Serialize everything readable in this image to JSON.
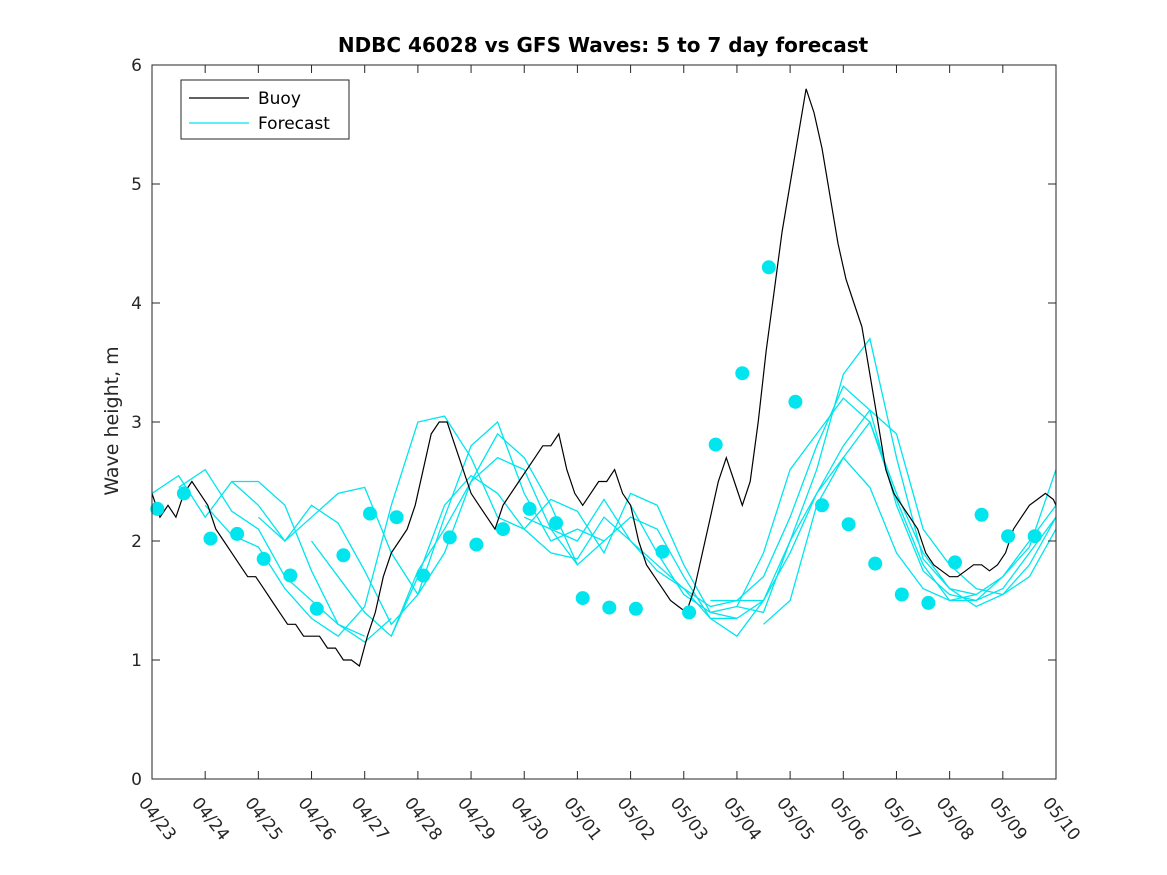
{
  "chart_data": {
    "type": "line",
    "title": "NDBC 46028 vs GFS Waves: 5 to 7 day forecast",
    "xlabel": "",
    "ylabel": "Wave height, m",
    "xlim": [
      "04/23",
      "05/10"
    ],
    "ylim": [
      0,
      6
    ],
    "grid": false,
    "legend_position": "top-left",
    "x_ticks": [
      "04/23",
      "04/24",
      "04/25",
      "04/26",
      "04/27",
      "04/28",
      "04/29",
      "04/30",
      "05/01",
      "05/02",
      "05/03",
      "05/04",
      "05/05",
      "05/06",
      "05/07",
      "05/08",
      "05/09",
      "05/10"
    ],
    "y_ticks": [
      0,
      1,
      2,
      3,
      4,
      5,
      6
    ],
    "colors": {
      "buoy": "#000000",
      "forecast": "#00e5ee"
    },
    "series": [
      {
        "name": "Buoy",
        "style": "line",
        "x_days": [
          0,
          0.15,
          0.3,
          0.45,
          0.6,
          0.75,
          0.9,
          1.05,
          1.2,
          1.35,
          1.5,
          1.65,
          1.8,
          1.95,
          2.1,
          2.25,
          2.4,
          2.55,
          2.7,
          2.85,
          3.0,
          3.15,
          3.3,
          3.45,
          3.6,
          3.75,
          3.9,
          4.05,
          4.2,
          4.35,
          4.5,
          4.65,
          4.8,
          4.95,
          5.1,
          5.25,
          5.4,
          5.55,
          5.7,
          5.85,
          6.0,
          6.15,
          6.3,
          6.45,
          6.6,
          6.75,
          6.9,
          7.05,
          7.2,
          7.35,
          7.5,
          7.65,
          7.8,
          7.95,
          8.1,
          8.25,
          8.4,
          8.55,
          8.7,
          8.85,
          9.0,
          9.15,
          9.3,
          9.45,
          9.6,
          9.75,
          9.9,
          10.05,
          10.2,
          10.35,
          10.5,
          10.65,
          10.8,
          10.95,
          11.1,
          11.25,
          11.4,
          11.55,
          11.7,
          11.85,
          12.0,
          12.15,
          12.3,
          12.45,
          12.6,
          12.75,
          12.9,
          13.05,
          13.2,
          13.35,
          13.5,
          13.65,
          13.8,
          13.95,
          14.1,
          14.25,
          14.4,
          14.55,
          14.7,
          14.85,
          15.0,
          15.15,
          15.3,
          15.45,
          15.6,
          15.75,
          15.9,
          16.05,
          16.2,
          16.35,
          16.5,
          16.65,
          16.8,
          16.95,
          17.0
        ],
        "values": [
          2.4,
          2.2,
          2.3,
          2.2,
          2.4,
          2.5,
          2.4,
          2.3,
          2.1,
          2.0,
          1.9,
          1.8,
          1.7,
          1.7,
          1.6,
          1.5,
          1.4,
          1.3,
          1.3,
          1.2,
          1.2,
          1.2,
          1.1,
          1.1,
          1.0,
          1.0,
          0.95,
          1.2,
          1.4,
          1.7,
          1.9,
          2.0,
          2.1,
          2.3,
          2.6,
          2.9,
          3.0,
          3.0,
          2.8,
          2.6,
          2.4,
          2.3,
          2.2,
          2.1,
          2.3,
          2.4,
          2.5,
          2.6,
          2.7,
          2.8,
          2.8,
          2.9,
          2.6,
          2.4,
          2.3,
          2.4,
          2.5,
          2.5,
          2.6,
          2.4,
          2.3,
          2.0,
          1.8,
          1.7,
          1.6,
          1.5,
          1.45,
          1.4,
          1.6,
          1.9,
          2.2,
          2.5,
          2.7,
          2.5,
          2.3,
          2.5,
          3.0,
          3.6,
          4.1,
          4.6,
          5.0,
          5.4,
          5.8,
          5.6,
          5.3,
          4.9,
          4.5,
          4.2,
          4.0,
          3.8,
          3.4,
          3.0,
          2.6,
          2.4,
          2.3,
          2.2,
          2.1,
          1.9,
          1.8,
          1.75,
          1.7,
          1.7,
          1.75,
          1.8,
          1.8,
          1.75,
          1.8,
          1.9,
          2.1,
          2.2,
          2.3,
          2.35,
          2.4,
          2.35,
          2.3
        ]
      },
      {
        "name": "Forecast",
        "style": "lines",
        "runs": [
          {
            "x_days": [
              0,
              0.5,
              1.0,
              1.5,
              2.0,
              2.5,
              3.0,
              3.5,
              4.0,
              4.5
            ],
            "values": [
              2.4,
              2.55,
              2.2,
              2.5,
              2.5,
              2.3,
              1.75,
              1.3,
              1.15,
              1.35
            ]
          },
          {
            "x_days": [
              0.5,
              1.0,
              1.5,
              2.0,
              2.5,
              3.0,
              3.5,
              4.0
            ],
            "values": [
              2.45,
              2.6,
              2.25,
              2.1,
              1.7,
              1.5,
              1.3,
              1.2
            ]
          },
          {
            "x_days": [
              1.0,
              1.5,
              2.0,
              2.5,
              3.0,
              3.5,
              4.0,
              4.5,
              5.0,
              5.5,
              6.0
            ],
            "values": [
              2.3,
              2.05,
              1.95,
              1.6,
              1.35,
              1.2,
              1.45,
              2.3,
              3.0,
              3.05,
              2.7
            ]
          },
          {
            "x_days": [
              1.5,
              2.0,
              2.5,
              3.0,
              3.5,
              4.0,
              4.5,
              5.0,
              5.5,
              6.0,
              6.5,
              7.0,
              7.5,
              8.0
            ],
            "values": [
              2.5,
              2.3,
              2.0,
              2.2,
              2.4,
              2.45,
              1.9,
              1.55,
              1.9,
              2.5,
              2.7,
              2.6,
              2.1,
              1.8
            ]
          },
          {
            "x_days": [
              2.0,
              2.5,
              3.0,
              3.5,
              4.0,
              4.5,
              5.0,
              5.5,
              6.0,
              6.5,
              7.0,
              7.5,
              8.0,
              8.5
            ],
            "values": [
              2.2,
              2.0,
              2.3,
              2.15,
              1.75,
              1.3,
              1.55,
              2.2,
              2.8,
              3.0,
              2.4,
              2.0,
              2.1,
              2.0
            ]
          },
          {
            "x_days": [
              3.0,
              3.5,
              4.0,
              4.5,
              5.0,
              5.5,
              6.0,
              6.5,
              7.0,
              7.5,
              8.0,
              8.5,
              9.0,
              9.5,
              10.0,
              10.5,
              11.0
            ],
            "values": [
              2.0,
              1.7,
              1.4,
              1.2,
              1.7,
              2.3,
              2.55,
              2.4,
              2.1,
              2.35,
              2.25,
              1.9,
              2.4,
              2.3,
              1.8,
              1.4,
              1.35
            ]
          },
          {
            "x_days": [
              4.5,
              5.0,
              5.5,
              6.0,
              6.5,
              7.0,
              7.5,
              8.0,
              8.5,
              9.0,
              9.5,
              10.0,
              10.5,
              11.0,
              11.5
            ],
            "values": [
              1.2,
              1.75,
              2.1,
              2.5,
              2.9,
              2.7,
              2.3,
              1.8,
              2.0,
              2.2,
              2.1,
              1.7,
              1.35,
              1.2,
              1.5
            ]
          },
          {
            "x_days": [
              6.0,
              6.5,
              7.0,
              7.5,
              8.0,
              8.5,
              9.0,
              9.5,
              10.0,
              10.5,
              11.0,
              11.5,
              12.0,
              12.5,
              13.0,
              13.5,
              14.0,
              14.5,
              15.0,
              15.5
            ],
            "values": [
              2.7,
              2.2,
              2.1,
              1.9,
              1.85,
              2.2,
              2.0,
              1.8,
              1.6,
              1.35,
              1.35,
              1.5,
              1.9,
              2.4,
              2.7,
              2.45,
              1.9,
              1.6,
              1.5,
              1.55
            ]
          },
          {
            "x_days": [
              7.0,
              7.5,
              8.0,
              8.5,
              9.0,
              9.5,
              10.0,
              10.5,
              11.0,
              11.5,
              12.0,
              12.5,
              13.0,
              13.5,
              14.0,
              14.5,
              15.0,
              15.5,
              16.0,
              16.5,
              17.0
            ],
            "values": [
              2.2,
              2.1,
              2.0,
              2.35,
              2.0,
              1.75,
              1.6,
              1.45,
              1.5,
              1.7,
              2.2,
              2.8,
              3.3,
              3.1,
              2.3,
              1.75,
              1.55,
              1.5,
              1.6,
              1.9,
              2.2
            ]
          },
          {
            "x_days": [
              9.0,
              9.5,
              10.0,
              10.5,
              11.0,
              11.5,
              12.0,
              12.5,
              13.0,
              13.5,
              14.0,
              14.5,
              15.0,
              15.5,
              16.0,
              16.5,
              17.0
            ],
            "values": [
              2.3,
              1.9,
              1.55,
              1.4,
              1.45,
              1.4,
              2.0,
              2.6,
              3.4,
              3.7,
              2.7,
              1.85,
              1.6,
              1.55,
              1.7,
              2.0,
              2.3
            ]
          },
          {
            "x_days": [
              10.5,
              11.0,
              11.5,
              12.0,
              12.5,
              13.0,
              13.5,
              14.0,
              14.5,
              15.0,
              15.5,
              16.0,
              16.5,
              17.0
            ],
            "values": [
              1.5,
              1.5,
              1.5,
              2.0,
              2.4,
              2.8,
              3.1,
              2.9,
              2.1,
              1.8,
              1.6,
              1.55,
              1.7,
              2.1
            ]
          },
          {
            "x_days": [
              11.0,
              11.5,
              12.0,
              12.5,
              13.0,
              13.5,
              14.0,
              14.5,
              15.0,
              15.5,
              16.0,
              16.5,
              17.0
            ],
            "values": [
              1.45,
              1.9,
              2.6,
              2.9,
              3.2,
              3.0,
              2.35,
              1.8,
              1.5,
              1.5,
              1.7,
              1.95,
              2.6
            ]
          },
          {
            "x_days": [
              11.5,
              12.0,
              12.5,
              13.0,
              13.5,
              14.0,
              14.5,
              15.0,
              15.5,
              16.0,
              16.5,
              17.0
            ],
            "values": [
              1.3,
              1.5,
              2.3,
              2.7,
              3.0,
              2.4,
              1.9,
              1.6,
              1.45,
              1.55,
              1.8,
              2.2
            ]
          }
        ],
        "markers_x_days": [
          0.1,
          0.6,
          1.1,
          1.6,
          2.1,
          2.6,
          3.1,
          3.6,
          4.1,
          4.6,
          5.1,
          5.6,
          6.1,
          6.6,
          7.1,
          7.6,
          8.1,
          8.6,
          9.1,
          9.6,
          10.1,
          10.6,
          11.1,
          11.6,
          12.1,
          12.6,
          13.1,
          13.6,
          14.1,
          14.6,
          15.1,
          15.6,
          16.1,
          16.6
        ],
        "markers_values": [
          2.27,
          2.4,
          2.02,
          2.06,
          1.85,
          1.71,
          1.43,
          1.88,
          2.23,
          2.2,
          1.71,
          2.03,
          1.97,
          2.1,
          2.27,
          2.15,
          1.52,
          1.44,
          1.43,
          1.91,
          1.4,
          2.81,
          3.41,
          4.3,
          3.17,
          2.3,
          2.14,
          1.81,
          1.55,
          1.48,
          1.82,
          2.22,
          2.04,
          2.04
        ]
      }
    ]
  }
}
